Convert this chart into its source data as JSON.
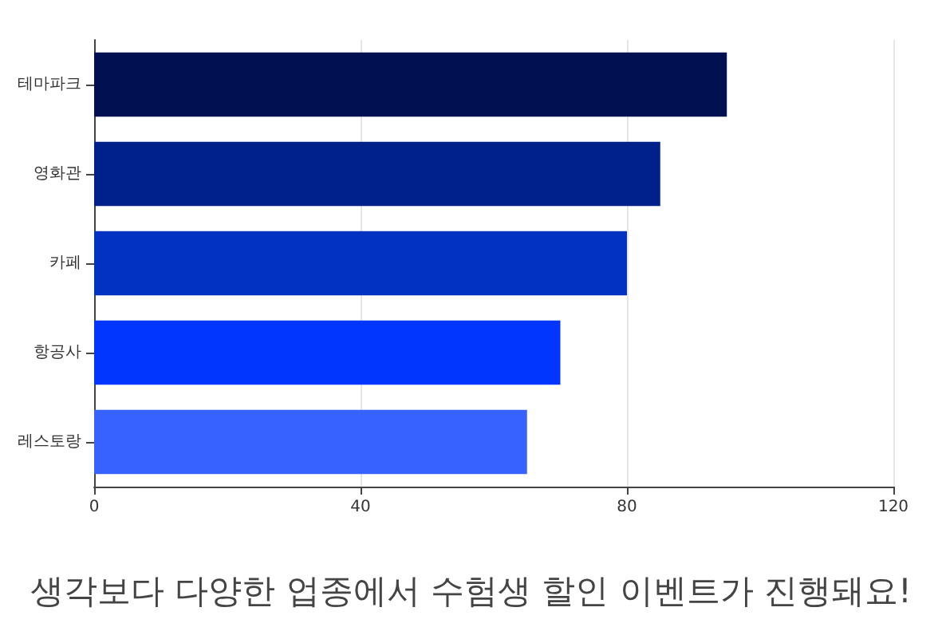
{
  "chart_data": {
    "type": "bar",
    "orientation": "horizontal",
    "title": "생각보다 다양한 업종에서 수험생 할인 이벤트가 진행돼요!",
    "categories": [
      "테마파크",
      "영화관",
      "카페",
      "항공사",
      "레스토랑"
    ],
    "values": [
      95,
      85,
      80,
      70,
      65
    ],
    "colors": [
      "#001050",
      "#00208a",
      "#0232c2",
      "#0036ff",
      "#3862ff"
    ],
    "xlim": [
      0,
      120
    ],
    "xticks": [
      0,
      40,
      80,
      120
    ],
    "grid": "x"
  }
}
